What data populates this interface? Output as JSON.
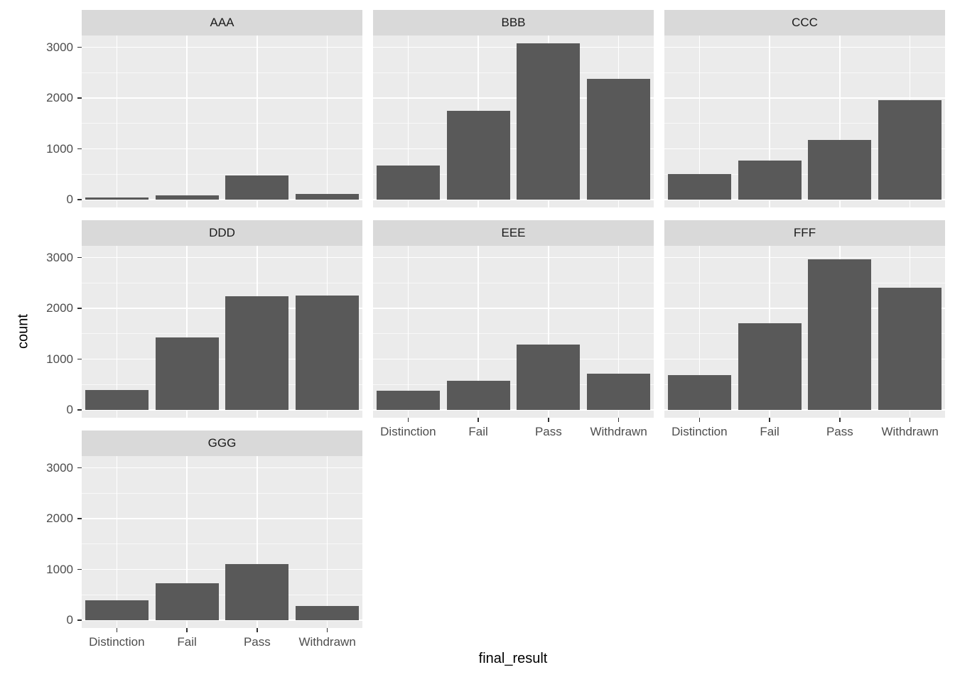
{
  "chart_data": {
    "type": "bar",
    "title": "",
    "xlabel": "final_result",
    "ylabel": "count",
    "categories": [
      "Distinction",
      "Fail",
      "Pass",
      "Withdrawn"
    ],
    "y_ticks": [
      0,
      1000,
      2000,
      3000
    ],
    "y_minor_ticks": [
      500,
      1500,
      2500
    ],
    "ylim": [
      -154,
      3234
    ],
    "grid": true,
    "legend": "none",
    "facet_layout": "wrap-3-columns",
    "panels": [
      {
        "name": "AAA",
        "values": [
          40,
          90,
          480,
          110
        ]
      },
      {
        "name": "BBB",
        "values": [
          670,
          1750,
          3080,
          2380
        ]
      },
      {
        "name": "CCC",
        "values": [
          500,
          770,
          1170,
          1960
        ]
      },
      {
        "name": "DDD",
        "values": [
          390,
          1430,
          2240,
          2250
        ]
      },
      {
        "name": "EEE",
        "values": [
          380,
          570,
          1290,
          710
        ]
      },
      {
        "name": "FFF",
        "values": [
          690,
          1710,
          2970,
          2410
        ]
      },
      {
        "name": "GGG",
        "values": [
          390,
          730,
          1110,
          280
        ]
      }
    ],
    "colors": {
      "bar": "#595959",
      "panel_background": "#ebebeb",
      "strip_background": "#d9d9d9",
      "gridline": "#ffffff",
      "tick_text": "#4d4d4d",
      "axis_title_text": "#000000"
    }
  }
}
